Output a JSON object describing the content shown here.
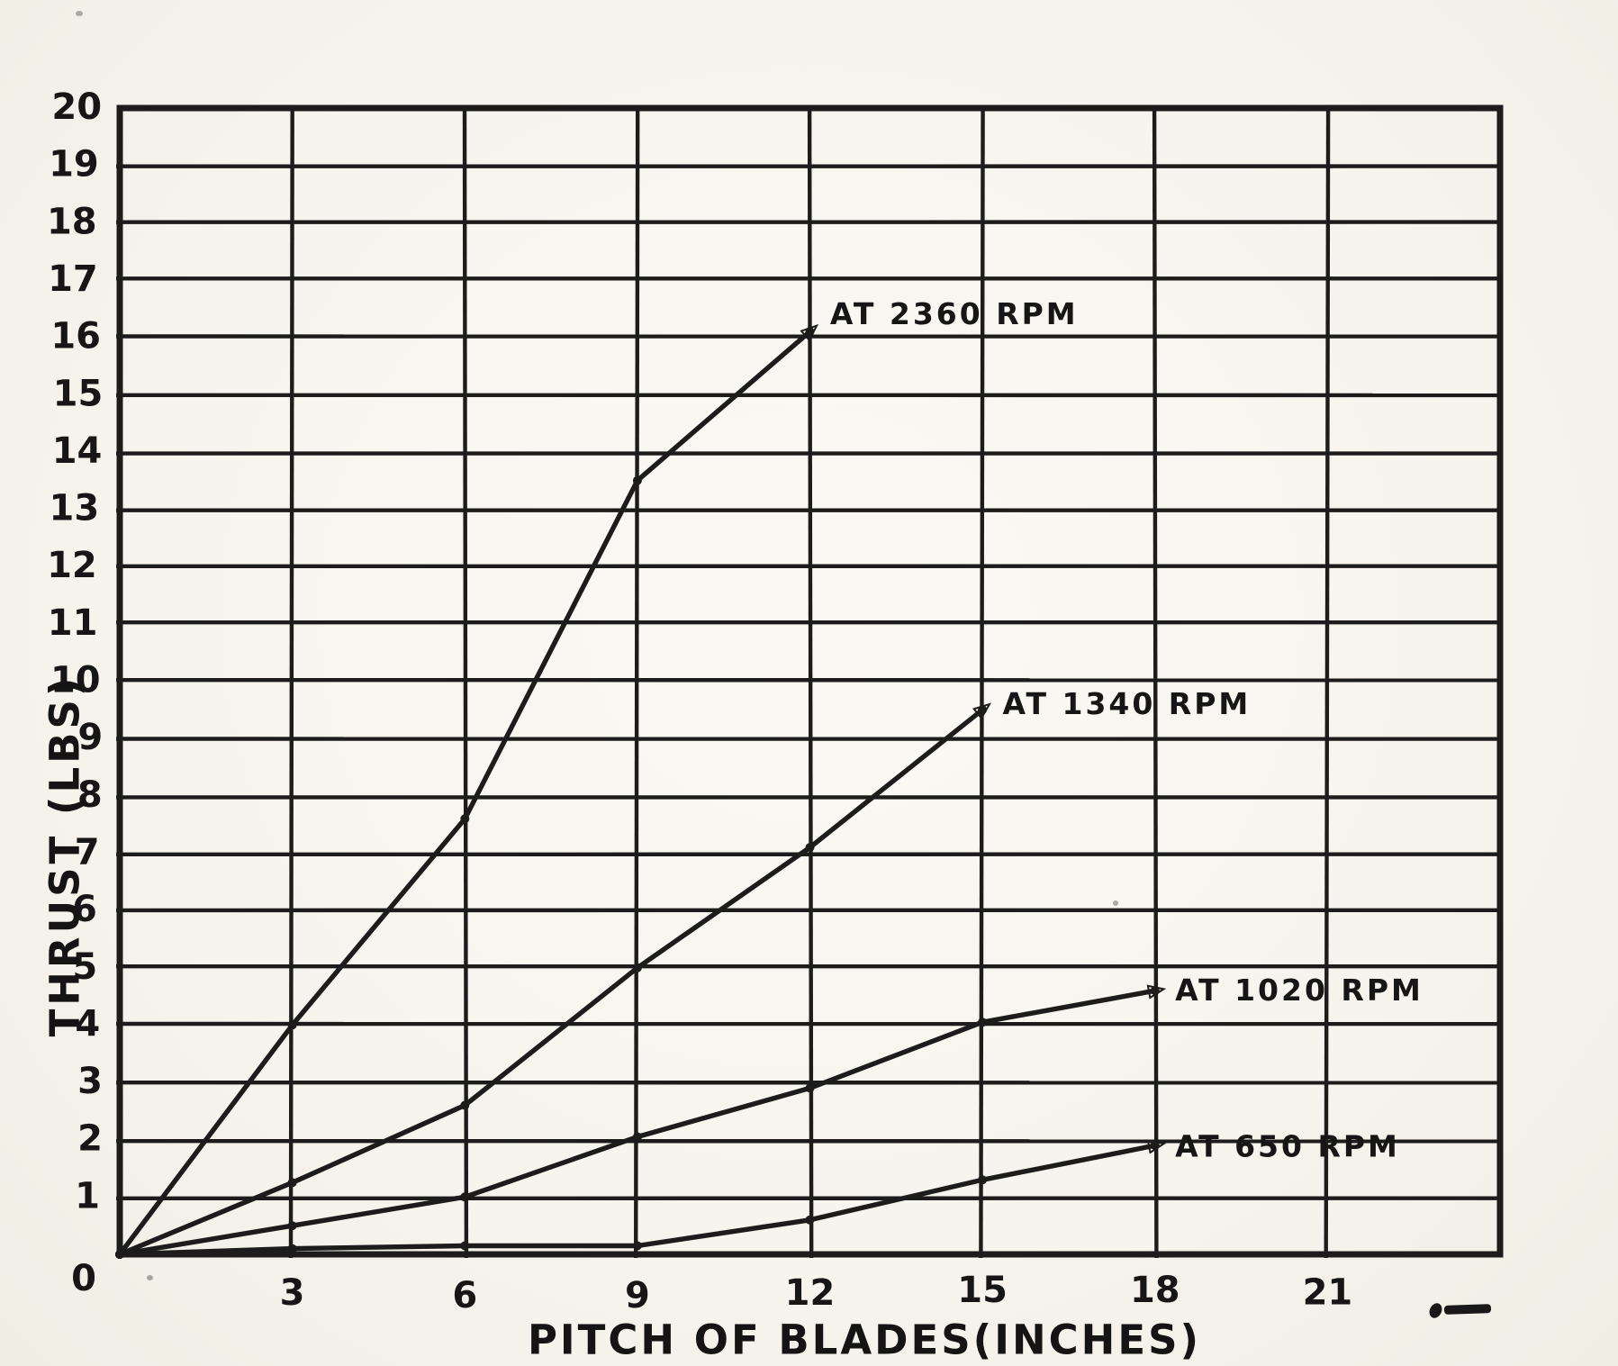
{
  "page": {
    "background": "#f6f4ed",
    "ink": "#1c1c1c"
  },
  "chart_data": {
    "type": "line",
    "title": "",
    "xlabel": "PITCH OF BLADES(INCHES)",
    "ylabel": "THRUST (LBS)",
    "xlim": [
      0,
      24
    ],
    "ylim": [
      0,
      20
    ],
    "grid": "on, cells of 3 inches by 1 lb",
    "legend_position": "inline labels at end of each curve",
    "x_tick_values": [
      3,
      6,
      9,
      12,
      15,
      18,
      21
    ],
    "x_tick_labels": [
      "3",
      "6",
      "9",
      "12",
      "15",
      "18",
      "21"
    ],
    "y_tick_values": [
      1,
      2,
      3,
      4,
      5,
      6,
      7,
      8,
      9,
      10,
      11,
      12,
      13,
      14,
      15,
      16,
      17,
      18,
      19,
      20
    ],
    "y_tick_labels": [
      "1",
      "2",
      "3",
      "4",
      "5",
      "6",
      "7",
      "8",
      "9",
      "10",
      "11",
      "12",
      "13",
      "14",
      "15",
      "16",
      "17",
      "18",
      "19",
      "20"
    ],
    "origin_label": "0",
    "series": [
      {
        "name": "AT 2360 RPM",
        "x": [
          0,
          3,
          6,
          9,
          12
        ],
        "y": [
          0,
          4.0,
          7.6,
          13.5,
          16.1
        ],
        "label_x": 12.35,
        "label_y": 16.4
      },
      {
        "name": "AT 1340 RPM",
        "x": [
          0,
          3,
          6,
          9,
          12,
          15
        ],
        "y": [
          0,
          1.25,
          2.6,
          5.0,
          7.1,
          9.5
        ],
        "label_x": 15.35,
        "label_y": 9.6
      },
      {
        "name": "AT 1020 RPM",
        "x": [
          0,
          3,
          6,
          9,
          12,
          15,
          18
        ],
        "y": [
          0,
          0.5,
          1.0,
          2.05,
          2.9,
          4.05,
          4.6
        ],
        "label_x": 18.35,
        "label_y": 4.6
      },
      {
        "name": "AT 650 RPM",
        "x": [
          0,
          3,
          6,
          9,
          12,
          15,
          18
        ],
        "y": [
          0,
          0.1,
          0.15,
          0.15,
          0.6,
          1.3,
          1.9
        ],
        "label_x": 18.35,
        "label_y": 1.88
      }
    ]
  }
}
